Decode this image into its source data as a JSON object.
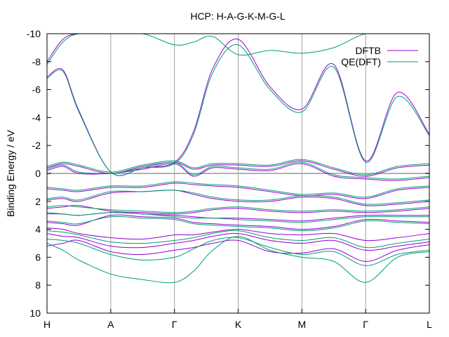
{
  "chart_data": {
    "type": "line",
    "title": "HCP: H-A-G-K-M-G-L",
    "xlabel": "",
    "ylabel": "Binding Energy / eV",
    "ylim": [
      10,
      -10
    ],
    "y_ticks": [
      -10,
      -8,
      -6,
      -4,
      -2,
      0,
      2,
      4,
      6,
      8,
      10
    ],
    "y_tick_labels": [
      "-10",
      "-8",
      "-6",
      "-4",
      "-2",
      "0",
      "2",
      "4",
      "6",
      "8",
      "10"
    ],
    "x_range": [
      0,
      6
    ],
    "k_points": [
      {
        "label": "H",
        "x": 0
      },
      {
        "label": "A",
        "x": 1
      },
      {
        "label": "Γ",
        "x": 2
      },
      {
        "label": "K",
        "x": 3
      },
      {
        "label": "M",
        "x": 4
      },
      {
        "label": "Γ",
        "x": 5
      },
      {
        "label": "L",
        "x": 6
      }
    ],
    "grid": "vertical lines at high-symmetry points",
    "fermi_level": 0,
    "legend_position": "top-right",
    "colors": {
      "DFTB": "#9400d3",
      "QE(DFT)": "#009e73",
      "grid": "#a0a0a0",
      "fermi": "#b0b0b0"
    },
    "series": [
      {
        "name": "DFTB",
        "bands": [
          {
            "x": [
              0,
              0.25,
              0.5,
              1,
              1.5,
              2,
              2.3,
              2.6,
              3,
              3.5,
              4,
              4.5,
              5,
              5.5,
              6
            ],
            "y": [
              5.2,
              5,
              4.8,
              5.6,
              5.8,
              5.5,
              5.3,
              5,
              4.8,
              5.6,
              5.7,
              5.4,
              6.3,
              5.5,
              5.1
            ]
          },
          {
            "x": [
              0,
              0.25,
              0.5,
              1,
              1.5,
              2,
              2.3,
              2.6,
              3,
              3.5,
              4,
              4.5,
              5,
              5.5,
              6
            ],
            "y": [
              4.3,
              4.5,
              4.6,
              5.2,
              5.3,
              5,
              4.8,
              4.5,
              4.3,
              4.8,
              5,
              4.8,
              5.5,
              5.2,
              4.9
            ]
          },
          {
            "x": [
              0,
              0.25,
              0.5,
              1,
              1.5,
              2,
              2.3,
              2.6,
              3,
              3.5,
              4,
              4.5,
              5,
              5.5,
              6
            ],
            "y": [
              3.9,
              4,
              4.3,
              4.6,
              4.7,
              4.4,
              4.4,
              4.2,
              4,
              4.3,
              4.4,
              4.3,
              4.8,
              4.6,
              4.3
            ]
          },
          {
            "x": [
              0,
              0.25,
              0.5,
              1,
              1.5,
              2,
              2.3,
              2.6,
              3,
              3.5,
              4,
              4.5,
              5,
              5.5,
              6
            ],
            "y": [
              3.5,
              3.6,
              3.7,
              3,
              3.1,
              3.2,
              3.5,
              3.6,
              3.7,
              3.8,
              4,
              3.8,
              3.3,
              3.4,
              3.5
            ]
          },
          {
            "x": [
              0,
              0.25,
              0.5,
              1,
              1.5,
              2,
              2.3,
              2.6,
              3,
              3.5,
              4,
              4.5,
              5,
              5.5,
              6
            ],
            "y": [
              2.9,
              2.9,
              3,
              2.8,
              2.9,
              3,
              3.1,
              3.2,
              3.2,
              3.3,
              3.4,
              3.2,
              3,
              3,
              3
            ]
          },
          {
            "x": [
              0,
              0.25,
              0.5,
              1,
              1.5,
              2,
              2.3,
              2.6,
              3,
              3.5,
              4,
              4.5,
              5,
              5.5,
              6
            ],
            "y": [
              2.5,
              2.4,
              2.3,
              2.7,
              2.8,
              2.9,
              2.8,
              2.6,
              2.5,
              2.7,
              2.8,
              2.7,
              2.8,
              2.7,
              2.5
            ]
          },
          {
            "x": [
              0,
              0.25,
              0.5,
              1,
              1.5,
              2,
              2.3,
              2.6,
              3,
              3.5,
              4,
              4.5,
              5,
              5.5,
              6
            ],
            "y": [
              1.9,
              1.8,
              2,
              1.4,
              1.3,
              1.2,
              1.5,
              1.8,
              2,
              2,
              1.7,
              1.8,
              2.3,
              2.2,
              2
            ]
          },
          {
            "x": [
              0,
              0.25,
              0.5,
              1,
              1.5,
              2,
              2.3,
              2.6,
              3,
              3.5,
              4,
              4.5,
              5,
              5.5,
              6
            ],
            "y": [
              1.1,
              1.2,
              1.3,
              1,
              1,
              0.7,
              0.8,
              0.9,
              1,
              1.3,
              1.6,
              1.5,
              1.8,
              1.2,
              1
            ]
          },
          {
            "x": [
              0,
              0.25,
              0.5,
              1,
              1.5,
              2,
              2.3,
              2.6,
              3,
              3.5,
              4,
              4.5,
              5,
              5.5,
              6
            ],
            "y": [
              -0.2,
              -0.5,
              0,
              0,
              -0.3,
              -0.7,
              0.2,
              -0.4,
              -0.3,
              -0.2,
              -0.7,
              0.2,
              0.4,
              0.5,
              0.3
            ]
          },
          {
            "x": [
              0,
              0.25,
              0.5,
              1,
              1.5,
              2,
              2.3,
              2.6,
              3,
              3.5,
              4,
              4.5,
              5,
              5.5,
              6
            ],
            "y": [
              -0.4,
              -0.7,
              -0.5,
              0,
              -0.5,
              -0.8,
              -0.3,
              -0.6,
              -0.6,
              -0.5,
              -0.9,
              -0.3,
              0.2,
              -0.4,
              -0.6
            ]
          },
          {
            "x": [
              0,
              0.25,
              0.5,
              1,
              1.5,
              2,
              2.3,
              2.6,
              3,
              3.5,
              4,
              4.5,
              5,
              5.5,
              6
            ],
            "y": [
              -6.9,
              -7.4,
              -4.5,
              -0.1,
              -0.4,
              -0.8,
              -3,
              -7.5,
              -9.6,
              -6.2,
              -4.6,
              -7.8,
              -0.9,
              -5.8,
              -2.8
            ]
          },
          {
            "x": [
              0,
              0.25,
              0.5,
              1,
              1.5,
              2,
              2.3,
              2.6,
              3,
              3.5,
              4,
              4.5,
              5,
              5.5,
              6
            ],
            "y": [
              -8,
              -9.6,
              -10,
              -10,
              -10,
              -10,
              -10,
              -10,
              -10,
              -10,
              -10,
              -10,
              -10,
              -10,
              -10
            ]
          }
        ]
      },
      {
        "name": "QE(DFT)",
        "bands": [
          {
            "x": [
              0,
              0.25,
              0.5,
              1,
              1.5,
              2,
              2.3,
              2.6,
              3,
              3.5,
              4,
              4.5,
              5,
              5.5,
              6
            ],
            "y": [
              5,
              5.5,
              6.2,
              7.2,
              7.6,
              7.8,
              7,
              5.5,
              4.5,
              5.5,
              6,
              6.3,
              7.8,
              6,
              5.6
            ]
          },
          {
            "x": [
              0,
              0.25,
              0.5,
              1,
              1.5,
              2,
              2.3,
              2.6,
              3,
              3.5,
              4,
              4.5,
              5,
              5.5,
              6
            ],
            "y": [
              4.7,
              4.8,
              5,
              5.8,
              6.2,
              6,
              5.4,
              4.8,
              4.6,
              5.3,
              5.8,
              5.6,
              6.6,
              5.8,
              5.5
            ]
          },
          {
            "x": [
              0,
              0.25,
              0.5,
              1,
              1.5,
              2,
              2.3,
              2.6,
              3,
              3.5,
              4,
              4.5,
              5,
              5.5,
              6
            ],
            "y": [
              4.1,
              4.2,
              4.4,
              4.9,
              5,
              4.8,
              4.6,
              4.3,
              4.1,
              4.6,
              4.8,
              4.6,
              5.3,
              5,
              4.7
            ]
          },
          {
            "x": [
              0,
              0.25,
              0.5,
              1,
              1.5,
              2,
              2.3,
              2.6,
              3,
              3.5,
              4,
              4.5,
              5,
              5.5,
              6
            ],
            "y": [
              3.4,
              3.5,
              3.6,
              3.1,
              3.2,
              3.3,
              3.6,
              3.7,
              3.8,
              3.9,
              4.1,
              3.9,
              3.4,
              3.5,
              3.6
            ]
          },
          {
            "x": [
              0,
              0.25,
              0.5,
              1,
              1.5,
              2,
              2.3,
              2.6,
              3,
              3.5,
              4,
              4.5,
              5,
              5.5,
              6
            ],
            "y": [
              2.8,
              2.9,
              3,
              2.8,
              2.9,
              3.1,
              3.2,
              3.2,
              3.3,
              3.4,
              3.5,
              3.3,
              3.1,
              3.1,
              3.1
            ]
          },
          {
            "x": [
              0,
              0.25,
              0.5,
              1,
              1.5,
              2,
              2.3,
              2.6,
              3,
              3.5,
              4,
              4.5,
              5,
              5.5,
              6
            ],
            "y": [
              2.4,
              2.3,
              2.4,
              2.6,
              2.7,
              2.8,
              2.7,
              2.5,
              2.4,
              2.6,
              2.7,
              2.6,
              2.7,
              2.6,
              2.4
            ]
          },
          {
            "x": [
              0,
              0.25,
              0.5,
              1,
              1.5,
              2,
              2.3,
              2.6,
              3,
              3.5,
              4,
              4.5,
              5,
              5.5,
              6
            ],
            "y": [
              1.8,
              1.7,
              1.9,
              1.3,
              1.3,
              1.2,
              1.4,
              1.7,
              1.9,
              1.9,
              1.6,
              1.7,
              2.2,
              2.1,
              1.9
            ]
          },
          {
            "x": [
              0,
              0.25,
              0.5,
              1,
              1.5,
              2,
              2.3,
              2.6,
              3,
              3.5,
              4,
              4.5,
              5,
              5.5,
              6
            ],
            "y": [
              1,
              1.1,
              1.2,
              0.9,
              0.9,
              0.6,
              0.7,
              0.8,
              0.9,
              1.2,
              1.5,
              1.4,
              1.7,
              1.1,
              0.9
            ]
          },
          {
            "x": [
              0,
              0.25,
              0.5,
              1,
              1.5,
              2,
              2.3,
              2.6,
              3,
              3.5,
              4,
              4.5,
              5,
              5.5,
              6
            ],
            "y": [
              -0.3,
              -0.6,
              -0.1,
              0,
              -0.4,
              -0.8,
              0.1,
              -0.5,
              -0.4,
              -0.3,
              -0.8,
              0.1,
              0.3,
              0.4,
              0.2
            ]
          },
          {
            "x": [
              0,
              0.25,
              0.5,
              1,
              1.5,
              2,
              2.3,
              2.6,
              3,
              3.5,
              4,
              4.5,
              5,
              5.5,
              6
            ],
            "y": [
              -0.5,
              -0.8,
              -0.6,
              -0.1,
              -0.6,
              -0.9,
              -0.4,
              -0.7,
              -0.7,
              -0.6,
              -1,
              -0.4,
              0.1,
              -0.5,
              -0.7
            ]
          },
          {
            "x": [
              0,
              0.25,
              0.5,
              1,
              1.5,
              2,
              2.3,
              2.6,
              3,
              3.5,
              4,
              4.5,
              5,
              5.5,
              6
            ],
            "y": [
              -6.8,
              -7.3,
              -4.4,
              -0.1,
              -0.4,
              -0.7,
              -2.8,
              -7.2,
              -9.2,
              -6,
              -4.4,
              -7.6,
              -0.8,
              -5.5,
              -2.7
            ]
          },
          {
            "x": [
              0,
              0.25,
              0.5,
              1,
              1.5,
              2,
              2.3,
              2.6,
              3,
              3.5,
              4,
              4.5,
              5,
              5.5,
              6
            ],
            "y": [
              -7.8,
              -9.4,
              -10,
              -10,
              -10,
              -9.2,
              -9.4,
              -9.8,
              -8.5,
              -8.8,
              -8.6,
              -9,
              -10,
              -10,
              -10
            ]
          }
        ]
      }
    ]
  }
}
